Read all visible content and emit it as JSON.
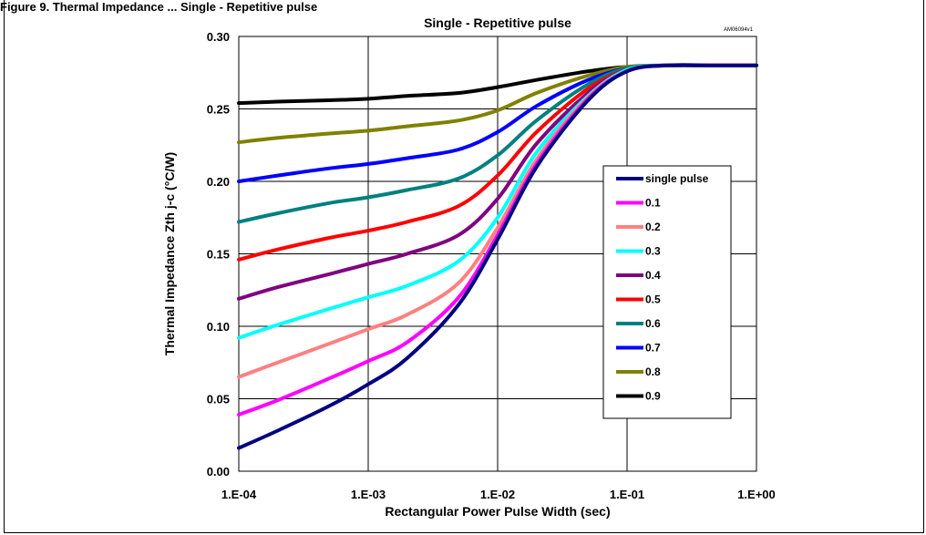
{
  "figure": {
    "caption": "Figure 9. Thermal Impedance ... Single - Repetitive pulse"
  },
  "chart_data": {
    "type": "line",
    "title": "Single - Repetitive pulse",
    "reference_id": "AM06094v1",
    "xlabel": "Rectangular Power Pulse Width (sec)",
    "ylabel": "Thermal Impedance Zth j-c (°C/W)",
    "x_scale": "log",
    "xlim": [
      0.0001,
      1
    ],
    "ylim": [
      0,
      0.3
    ],
    "x_ticks": [
      0.0001,
      0.001,
      0.01,
      0.1,
      1
    ],
    "x_tick_labels": [
      "1.E-04",
      "1.E-03",
      "1.E-02",
      "1.E-01",
      "1.E+00"
    ],
    "y_ticks": [
      0,
      0.05,
      0.1,
      0.15,
      0.2,
      0.25,
      0.3
    ],
    "y_tick_labels": [
      "0.00",
      "0.05",
      "0.10",
      "0.15",
      "0.20",
      "0.25",
      "0.30"
    ],
    "grid": true,
    "legend_position": "right",
    "x": [
      0.0001,
      0.0002,
      0.0005,
      0.001,
      0.002,
      0.005,
      0.01,
      0.02,
      0.05,
      0.1,
      0.2,
      0.5,
      1
    ],
    "series": [
      {
        "name": "single pulse",
        "color": "#000080",
        "values": [
          0.016,
          0.028,
          0.045,
          0.06,
          0.078,
          0.115,
          0.16,
          0.21,
          0.256,
          0.276,
          0.28,
          0.28,
          0.28
        ]
      },
      {
        "name": "0.1",
        "color": "#ff00ff",
        "values": [
          0.039,
          0.049,
          0.064,
          0.076,
          0.089,
          0.12,
          0.163,
          0.212,
          0.257,
          0.276,
          0.28,
          0.28,
          0.28
        ]
      },
      {
        "name": "0.2",
        "color": "#ff8080",
        "values": [
          0.065,
          0.075,
          0.088,
          0.098,
          0.108,
          0.13,
          0.168,
          0.215,
          0.258,
          0.276,
          0.28,
          0.28,
          0.28
        ]
      },
      {
        "name": "0.3",
        "color": "#00ffff",
        "values": [
          0.092,
          0.101,
          0.112,
          0.12,
          0.128,
          0.145,
          0.175,
          0.22,
          0.259,
          0.277,
          0.28,
          0.28,
          0.28
        ]
      },
      {
        "name": "0.4",
        "color": "#800080",
        "values": [
          0.119,
          0.127,
          0.136,
          0.143,
          0.15,
          0.163,
          0.188,
          0.226,
          0.261,
          0.277,
          0.28,
          0.28,
          0.28
        ]
      },
      {
        "name": "0.5",
        "color": "#ff0000",
        "values": [
          0.146,
          0.153,
          0.161,
          0.166,
          0.172,
          0.183,
          0.204,
          0.234,
          0.264,
          0.277,
          0.28,
          0.28,
          0.28
        ]
      },
      {
        "name": "0.6",
        "color": "#008080",
        "values": [
          0.172,
          0.178,
          0.185,
          0.189,
          0.194,
          0.202,
          0.218,
          0.242,
          0.267,
          0.278,
          0.28,
          0.28,
          0.28
        ]
      },
      {
        "name": "0.7",
        "color": "#0000ff",
        "values": [
          0.2,
          0.204,
          0.209,
          0.212,
          0.216,
          0.222,
          0.234,
          0.252,
          0.27,
          0.278,
          0.28,
          0.28,
          0.28
        ]
      },
      {
        "name": "0.8",
        "color": "#808000",
        "values": [
          0.227,
          0.23,
          0.233,
          0.235,
          0.238,
          0.242,
          0.249,
          0.261,
          0.273,
          0.279,
          0.28,
          0.28,
          0.28
        ]
      },
      {
        "name": "0.9",
        "color": "#000000",
        "values": [
          0.254,
          0.255,
          0.256,
          0.257,
          0.259,
          0.261,
          0.265,
          0.27,
          0.276,
          0.279,
          0.28,
          0.28,
          0.28
        ]
      }
    ]
  }
}
